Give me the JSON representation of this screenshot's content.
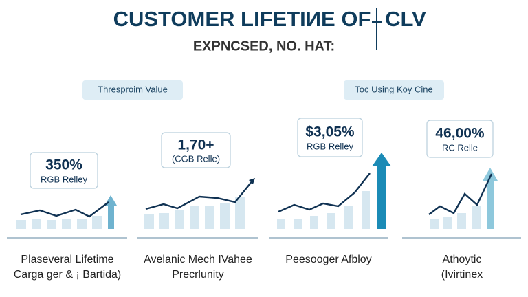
{
  "header": {
    "title": "CUSTOMER LIFETIИE OF",
    "title_end": "CLV",
    "subtitle": "EXPNCSED, NO. HAT:"
  },
  "sections": [
    "Thresproim Value",
    "Toc Using Koy Cine"
  ],
  "panels": [
    {
      "value": "350%",
      "label": "RGB Relley",
      "caption": [
        "Plaseveral Lifetime",
        "Carga ger & ¡ Bartida)"
      ]
    },
    {
      "value": "1,70+",
      "label": "(CGB Relle)",
      "caption": [
        "Avelanic Mech IVahee",
        "Precrlunity"
      ]
    },
    {
      "value": "$3,05%",
      "label": "RGB Relley",
      "caption": [
        "Peesooger Afbloy"
      ]
    },
    {
      "value": "46,00%",
      "label": "RC Relle",
      "caption": [
        "Athoytic",
        "(Ivirtinex"
      ]
    }
  ]
}
